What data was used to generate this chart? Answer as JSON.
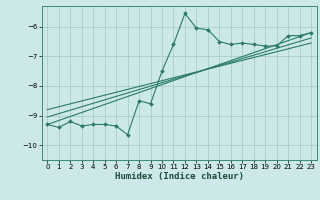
{
  "xlabel": "Humidex (Indice chaleur)",
  "bg_color": "#cce8e8",
  "grid_color": "#aacccc",
  "line_color": "#2a7a6a",
  "xlim": [
    -0.5,
    23.5
  ],
  "ylim": [
    -10.5,
    -5.3
  ],
  "yticks": [
    -10,
    -9,
    -8,
    -7,
    -6
  ],
  "xticks": [
    0,
    1,
    2,
    3,
    4,
    5,
    6,
    7,
    8,
    9,
    10,
    11,
    12,
    13,
    14,
    15,
    16,
    17,
    18,
    19,
    20,
    21,
    22,
    23
  ],
  "main_x": [
    0,
    1,
    2,
    3,
    4,
    5,
    6,
    7,
    8,
    9,
    10,
    11,
    12,
    13,
    14,
    15,
    16,
    17,
    18,
    19,
    20,
    21,
    22,
    23
  ],
  "main_y": [
    -9.3,
    -9.4,
    -9.2,
    -9.35,
    -9.3,
    -9.3,
    -9.35,
    -9.65,
    -8.5,
    -8.6,
    -7.5,
    -6.6,
    -5.55,
    -6.05,
    -6.1,
    -6.5,
    -6.6,
    -6.55,
    -6.6,
    -6.65,
    -6.65,
    -6.3,
    -6.3,
    -6.2
  ],
  "line2_x": [
    0,
    23
  ],
  "line2_y": [
    -9.3,
    -6.2
  ],
  "line3_x": [
    0,
    23
  ],
  "line3_y": [
    -9.05,
    -6.38
  ],
  "line4_x": [
    0,
    23
  ],
  "line4_y": [
    -8.8,
    -6.55
  ]
}
